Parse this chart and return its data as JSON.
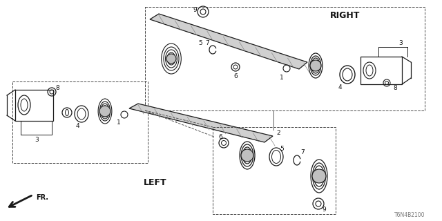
{
  "bg_color": "#ffffff",
  "line_color": "#1a1a1a",
  "part_number": "T6N4B2100",
  "right_label": "RIGHT",
  "left_label": "LEFT",
  "fr_label": "FR."
}
